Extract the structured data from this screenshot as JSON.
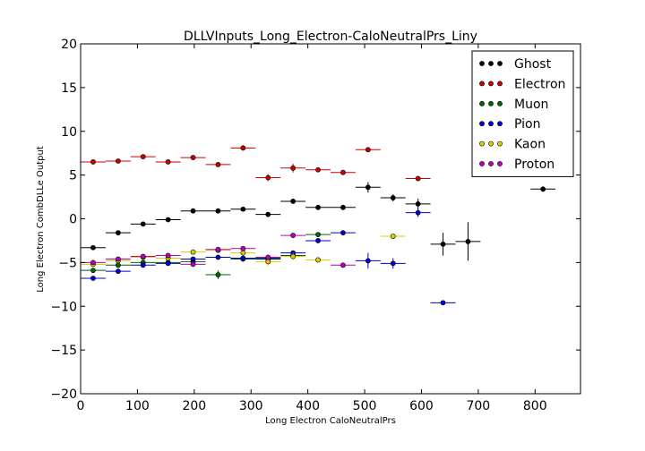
{
  "chart_data": {
    "type": "scatter",
    "title": "DLLVInputs_Long_Electron-CaloNeutralPrs_Liny",
    "xlabel": "Long Electron CaloNeutralPrs",
    "ylabel": "Long Electron CombDLLe Output",
    "xlim": [
      0,
      880
    ],
    "ylim": [
      -20,
      20
    ],
    "xticks": [
      "0",
      "100",
      "200",
      "300",
      "400",
      "500",
      "600",
      "700",
      "800"
    ],
    "yticks": [
      "−20",
      "−15",
      "−10",
      "−5",
      "0",
      "5",
      "10",
      "15",
      "20"
    ],
    "grid": false,
    "legend": "top-right",
    "series": [
      {
        "name": "Ghost",
        "color": "#000000",
        "points": [
          {
            "x": 22,
            "y": -3.3,
            "xerr": 22,
            "yerr": 0.2
          },
          {
            "x": 66,
            "y": -1.6,
            "xerr": 22,
            "yerr": 0.2
          },
          {
            "x": 110,
            "y": -0.6,
            "xerr": 22,
            "yerr": 0.2
          },
          {
            "x": 154,
            "y": -0.1,
            "xerr": 22,
            "yerr": 0.2
          },
          {
            "x": 198,
            "y": 0.9,
            "xerr": 22,
            "yerr": 0.2
          },
          {
            "x": 242,
            "y": 0.9,
            "xerr": 22,
            "yerr": 0.2
          },
          {
            "x": 286,
            "y": 1.1,
            "xerr": 22,
            "yerr": 0.2
          },
          {
            "x": 330,
            "y": 0.5,
            "xerr": 22,
            "yerr": 0.2
          },
          {
            "x": 374,
            "y": 2.0,
            "xerr": 22,
            "yerr": 0.2
          },
          {
            "x": 418,
            "y": 1.3,
            "xerr": 22,
            "yerr": 0.2
          },
          {
            "x": 462,
            "y": 1.3,
            "xerr": 22,
            "yerr": 0.2
          },
          {
            "x": 506,
            "y": 3.6,
            "xerr": 22,
            "yerr": 0.6
          },
          {
            "x": 550,
            "y": 2.4,
            "xerr": 22,
            "yerr": 0.4
          },
          {
            "x": 594,
            "y": 1.7,
            "xerr": 22,
            "yerr": 0.6
          },
          {
            "x": 638,
            "y": -2.9,
            "xerr": 22,
            "yerr": 1.3
          },
          {
            "x": 682,
            "y": -2.6,
            "xerr": 22,
            "yerr": 2.2
          },
          {
            "x": 814,
            "y": 3.4,
            "xerr": 22,
            "yerr": 0.3
          }
        ]
      },
      {
        "name": "Electron",
        "color": "#cc0000",
        "points": [
          {
            "x": 22,
            "y": 6.5,
            "xerr": 22,
            "yerr": 0.2
          },
          {
            "x": 66,
            "y": 6.6,
            "xerr": 22,
            "yerr": 0.2
          },
          {
            "x": 110,
            "y": 7.1,
            "xerr": 22,
            "yerr": 0.2
          },
          {
            "x": 154,
            "y": 6.5,
            "xerr": 22,
            "yerr": 0.2
          },
          {
            "x": 198,
            "y": 7.0,
            "xerr": 22,
            "yerr": 0.2
          },
          {
            "x": 242,
            "y": 6.2,
            "xerr": 22,
            "yerr": 0.2
          },
          {
            "x": 286,
            "y": 8.1,
            "xerr": 22,
            "yerr": 0.3
          },
          {
            "x": 330,
            "y": 4.7,
            "xerr": 22,
            "yerr": 0.4
          },
          {
            "x": 374,
            "y": 5.8,
            "xerr": 22,
            "yerr": 0.5
          },
          {
            "x": 418,
            "y": 5.6,
            "xerr": 22,
            "yerr": 0.2
          },
          {
            "x": 462,
            "y": 5.3,
            "xerr": 22,
            "yerr": 0.2
          },
          {
            "x": 506,
            "y": 7.9,
            "xerr": 22,
            "yerr": 0.2
          },
          {
            "x": 594,
            "y": 4.6,
            "xerr": 22,
            "yerr": 0.2
          }
        ]
      },
      {
        "name": "Muon",
        "color": "#006600",
        "points": [
          {
            "x": 22,
            "y": -5.9,
            "xerr": 22,
            "yerr": 0.2
          },
          {
            "x": 66,
            "y": -5.3,
            "xerr": 22,
            "yerr": 0.2
          },
          {
            "x": 110,
            "y": -5.0,
            "xerr": 22,
            "yerr": 0.2
          },
          {
            "x": 154,
            "y": -5.0,
            "xerr": 22,
            "yerr": 0.2
          },
          {
            "x": 198,
            "y": -4.9,
            "xerr": 22,
            "yerr": 0.2
          },
          {
            "x": 242,
            "y": -6.4,
            "xerr": 22,
            "yerr": 0.5
          },
          {
            "x": 286,
            "y": -4.6,
            "xerr": 22,
            "yerr": 0.3
          },
          {
            "x": 330,
            "y": -4.5,
            "xerr": 22,
            "yerr": 0.3
          },
          {
            "x": 374,
            "y": -4.2,
            "xerr": 22,
            "yerr": 0.3
          },
          {
            "x": 418,
            "y": -1.8,
            "xerr": 22,
            "yerr": 0.2
          }
        ]
      },
      {
        "name": "Pion",
        "color": "#0000cc",
        "points": [
          {
            "x": 22,
            "y": -6.8,
            "xerr": 22,
            "yerr": 0.2
          },
          {
            "x": 66,
            "y": -6.0,
            "xerr": 22,
            "yerr": 0.2
          },
          {
            "x": 110,
            "y": -5.3,
            "xerr": 22,
            "yerr": 0.2
          },
          {
            "x": 154,
            "y": -5.1,
            "xerr": 22,
            "yerr": 0.2
          },
          {
            "x": 198,
            "y": -4.6,
            "xerr": 22,
            "yerr": 0.2
          },
          {
            "x": 242,
            "y": -4.4,
            "xerr": 22,
            "yerr": 0.2
          },
          {
            "x": 286,
            "y": -4.5,
            "xerr": 22,
            "yerr": 0.2
          },
          {
            "x": 330,
            "y": -4.6,
            "xerr": 22,
            "yerr": 0.3
          },
          {
            "x": 374,
            "y": -3.9,
            "xerr": 22,
            "yerr": 0.2
          },
          {
            "x": 418,
            "y": -2.5,
            "xerr": 22,
            "yerr": 0.2
          },
          {
            "x": 462,
            "y": -1.6,
            "xerr": 22,
            "yerr": 0.2
          },
          {
            "x": 506,
            "y": -4.8,
            "xerr": 22,
            "yerr": 0.9
          },
          {
            "x": 550,
            "y": -5.1,
            "xerr": 22,
            "yerr": 0.6
          },
          {
            "x": 594,
            "y": 0.7,
            "xerr": 22,
            "yerr": 0.5
          },
          {
            "x": 638,
            "y": -9.6,
            "xerr": 22,
            "yerr": 0.1
          }
        ]
      },
      {
        "name": "Kaon",
        "color": "#ddcc00",
        "points": [
          {
            "x": 22,
            "y": -5.2,
            "xerr": 22,
            "yerr": 0.2
          },
          {
            "x": 66,
            "y": -4.8,
            "xerr": 22,
            "yerr": 0.2
          },
          {
            "x": 110,
            "y": -4.4,
            "xerr": 22,
            "yerr": 0.2
          },
          {
            "x": 154,
            "y": -4.5,
            "xerr": 22,
            "yerr": 0.2
          },
          {
            "x": 198,
            "y": -3.8,
            "xerr": 22,
            "yerr": 0.2
          },
          {
            "x": 242,
            "y": -3.6,
            "xerr": 22,
            "yerr": 0.2
          },
          {
            "x": 286,
            "y": -3.9,
            "xerr": 22,
            "yerr": 0.3
          },
          {
            "x": 330,
            "y": -4.9,
            "xerr": 22,
            "yerr": 0.5
          },
          {
            "x": 374,
            "y": -4.3,
            "xerr": 22,
            "yerr": 0.4
          },
          {
            "x": 418,
            "y": -4.7,
            "xerr": 22,
            "yerr": 0.3
          },
          {
            "x": 550,
            "y": -2.0,
            "xerr": 22,
            "yerr": 0.2
          }
        ]
      },
      {
        "name": "Proton",
        "color": "#bb00bb",
        "points": [
          {
            "x": 22,
            "y": -5.0,
            "xerr": 22,
            "yerr": 0.2
          },
          {
            "x": 66,
            "y": -4.6,
            "xerr": 22,
            "yerr": 0.2
          },
          {
            "x": 110,
            "y": -4.3,
            "xerr": 22,
            "yerr": 0.2
          },
          {
            "x": 154,
            "y": -4.2,
            "xerr": 22,
            "yerr": 0.2
          },
          {
            "x": 198,
            "y": -5.2,
            "xerr": 22,
            "yerr": 0.2
          },
          {
            "x": 242,
            "y": -3.5,
            "xerr": 22,
            "yerr": 0.2
          },
          {
            "x": 286,
            "y": -3.4,
            "xerr": 22,
            "yerr": 0.2
          },
          {
            "x": 330,
            "y": -4.4,
            "xerr": 22,
            "yerr": 0.3
          },
          {
            "x": 374,
            "y": -1.9,
            "xerr": 22,
            "yerr": 0.2
          },
          {
            "x": 462,
            "y": -5.3,
            "xerr": 22,
            "yerr": 0.2
          }
        ]
      }
    ]
  }
}
